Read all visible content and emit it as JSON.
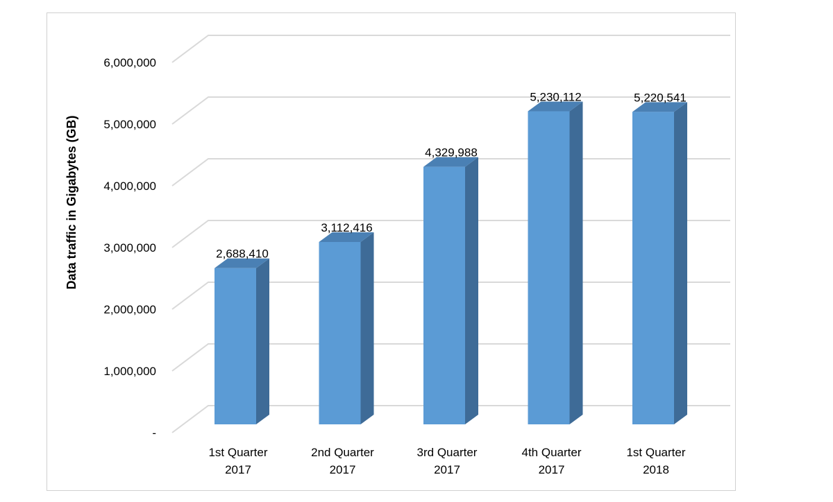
{
  "chart_data": {
    "type": "bar",
    "style": "3d-column",
    "categories": [
      "1st Quarter 2017",
      "2nd Quarter 2017",
      "3rd Quarter 2017",
      "4th Quarter 2017",
      "1st Quarter 2018"
    ],
    "category_lines": [
      [
        "1st Quarter",
        "2017"
      ],
      [
        "2nd Quarter",
        "2017"
      ],
      [
        "3rd Quarter",
        "2017"
      ],
      [
        "4th Quarter",
        "2017"
      ],
      [
        "1st Quarter",
        "2018"
      ]
    ],
    "values": [
      2688410,
      3112416,
      4329988,
      5230112,
      5220541
    ],
    "data_labels": [
      "2,688,410",
      "3,112,416",
      "4,329,988",
      "5,230,112",
      "5,220,541"
    ],
    "ylabel": "Data traffic in Gigabytes (GB)",
    "xlabel": "",
    "ylim": [
      0,
      6000000
    ],
    "yticks": [
      0,
      1000000,
      2000000,
      3000000,
      4000000,
      5000000,
      6000000
    ],
    "ytick_labels": [
      "-",
      "1,000,000",
      "2,000,000",
      "3,000,000",
      "4,000,000",
      "5,000,000",
      "6,000,000"
    ],
    "grid": true,
    "legend": "none",
    "colors": {
      "bar_front": "#5b9bd5",
      "bar_side": "#3e6b97",
      "bar_top": "#4a80b4",
      "grid": "#d9d9d9"
    }
  }
}
